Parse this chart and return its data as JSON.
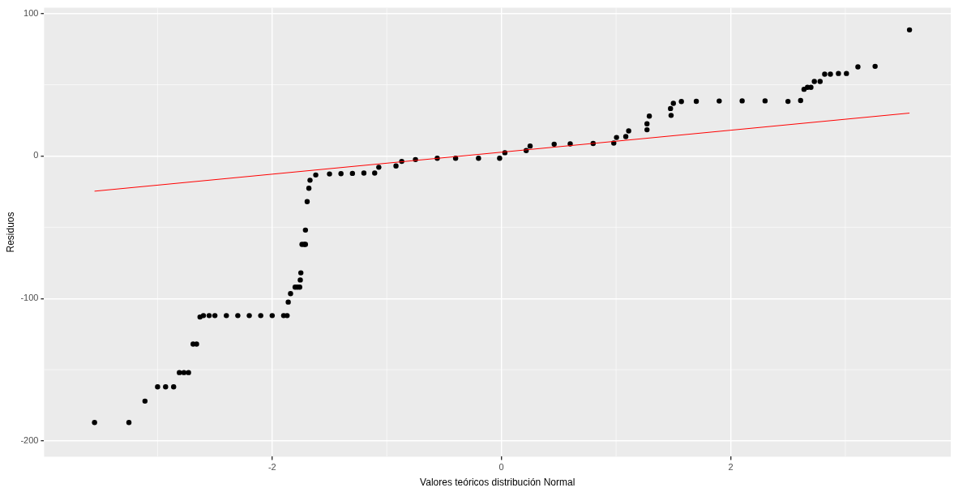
{
  "chart_data": {
    "type": "scatter",
    "xlabel": "Valores teóricos distribución Normal",
    "ylabel": "Residuos",
    "xlim": [
      -3.99,
      3.92
    ],
    "ylim": [
      -211,
      104
    ],
    "xticks": [
      -2,
      0,
      2
    ],
    "yticks": [
      -200,
      -100,
      0,
      100
    ],
    "grid": true,
    "series": [
      {
        "type": "scatter",
        "marker": "circle",
        "color": "#000000",
        "x": [
          -3.55,
          -3.25,
          -3.11,
          -3.0,
          -2.93,
          -2.86,
          -2.81,
          -2.77,
          -2.73,
          -2.69,
          -2.66,
          -2.63,
          -2.6,
          -2.55,
          -2.5,
          -2.4,
          -2.3,
          -2.2,
          -2.1,
          -2.0,
          -1.9,
          -1.87,
          -1.86,
          -1.84,
          -1.8,
          -1.78,
          -1.76,
          -1.755,
          -1.75,
          -1.74,
          -1.72,
          -1.71,
          -1.71,
          -1.695,
          -1.68,
          -1.67,
          -1.62,
          -1.5,
          -1.4,
          -1.3,
          -1.2,
          -1.106,
          -1.07,
          -0.92,
          -0.87,
          -0.75,
          -0.56,
          -0.4,
          -0.2,
          -0.016,
          0.03,
          0.216,
          0.25,
          0.46,
          0.6,
          0.8,
          0.98,
          1.004,
          1.085,
          1.11,
          1.27,
          1.27,
          1.29,
          1.48,
          1.475,
          1.5,
          1.57,
          1.7,
          1.9,
          2.1,
          2.3,
          2.5,
          2.61,
          2.64,
          2.67,
          2.7,
          2.73,
          2.78,
          2.82,
          2.87,
          2.94,
          3.01,
          3.11,
          3.26,
          3.56
        ],
        "values": [
          -187,
          -187,
          -172,
          -162,
          -162,
          -162,
          -152,
          -152,
          -152,
          -132,
          -132,
          -113,
          -112,
          -112,
          -112,
          -112,
          -112,
          -112,
          -112,
          -112,
          -112,
          -112,
          -102.5,
          -96.6,
          -92,
          -92,
          -92,
          -87,
          -82,
          -62,
          -62,
          -62,
          -52,
          -32,
          -22.6,
          -17,
          -13.3,
          -12.6,
          -12.4,
          -12.2,
          -12,
          -12,
          -7.9,
          -7,
          -3.8,
          -2.5,
          -1.6,
          -1.6,
          -1.6,
          -1.6,
          2.3,
          3.8,
          7,
          8.3,
          8.5,
          8.8,
          9.1,
          13,
          13.6,
          17.6,
          18.4,
          22.6,
          28,
          28.5,
          33.3,
          36.9,
          38.2,
          38.4,
          38.6,
          38.7,
          38.7,
          38.3,
          38.9,
          46.8,
          48.2,
          48.2,
          52.3,
          52.3,
          57.4,
          57.4,
          57.9,
          57.9,
          62.5,
          62.9,
          88.5
        ]
      },
      {
        "type": "line",
        "color": "#ff0000",
        "x": [
          -3.55,
          3.56
        ],
        "values": [
          -24.7,
          30.1
        ]
      }
    ]
  }
}
